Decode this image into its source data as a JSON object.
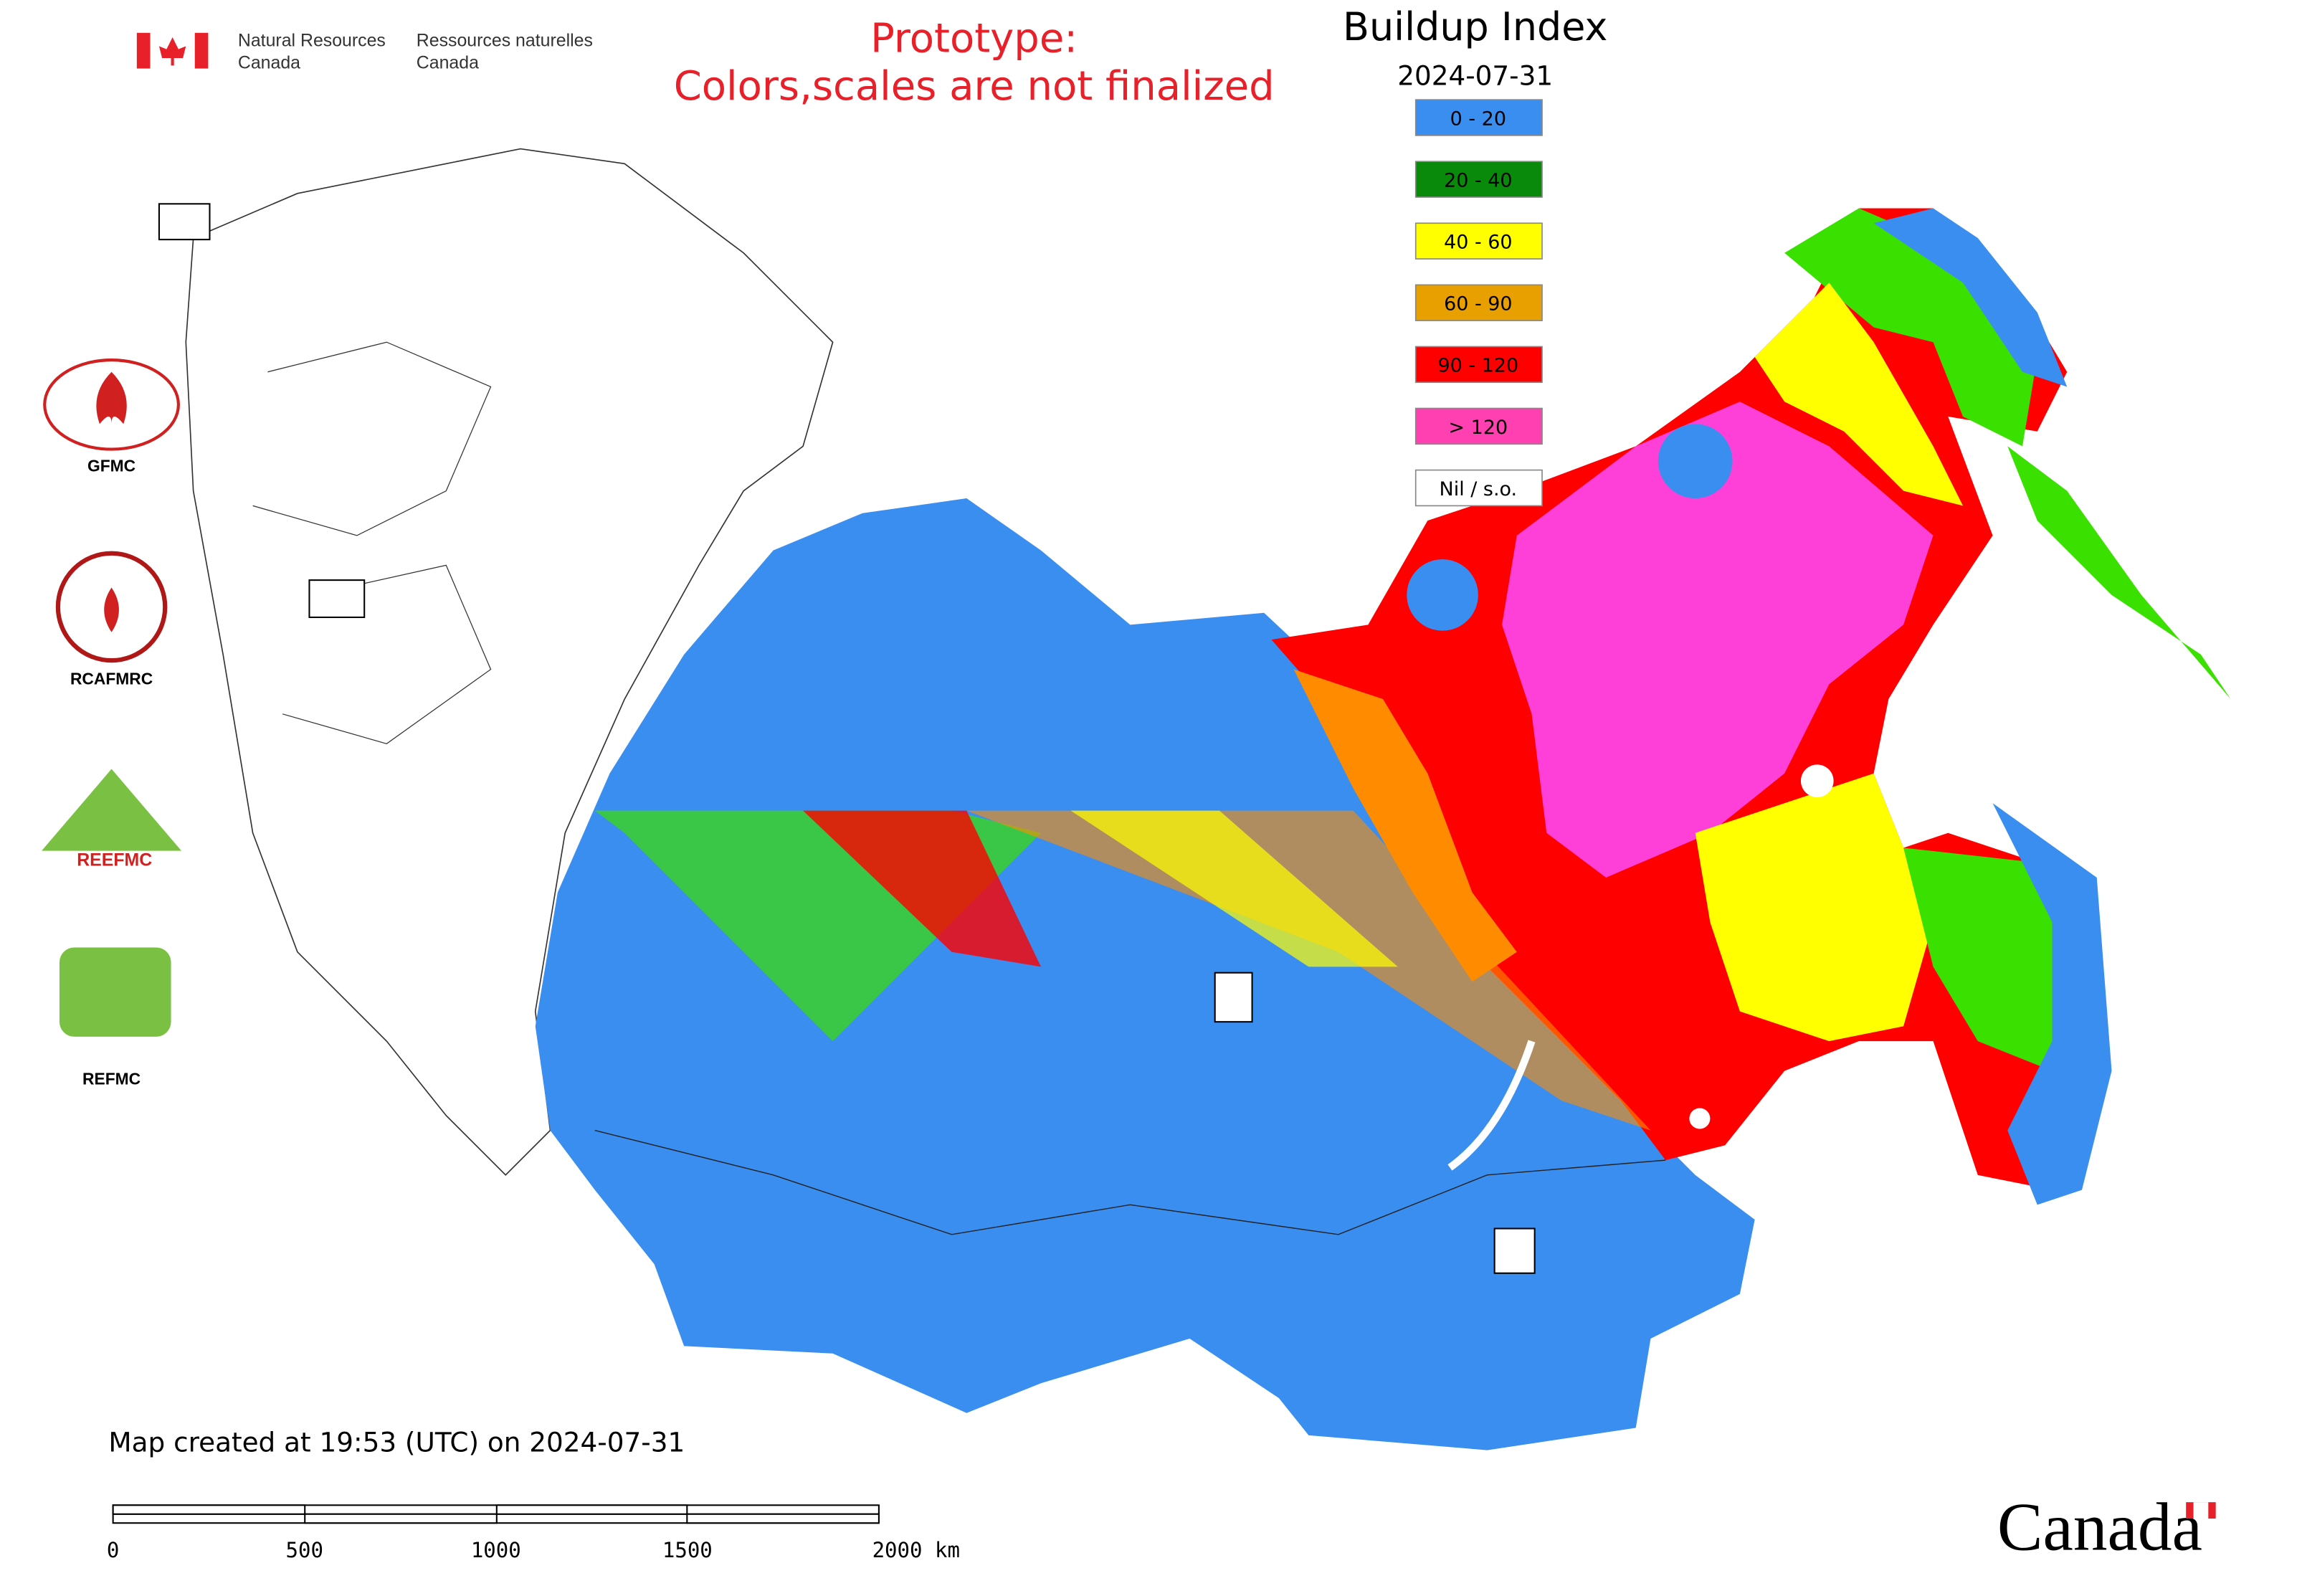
{
  "header": {
    "org_en_1": "Natural Resources",
    "org_en_2": "Canada",
    "org_fr_1": "Ressources naturelles",
    "org_fr_2": "Canada"
  },
  "notice": {
    "line1": "Prototype:",
    "line2": "Colors,scales are not finalized"
  },
  "map": {
    "title": "Buildup Index",
    "date": "2024-07-31",
    "legend": [
      {
        "label": "0 - 20",
        "color": "#3a8ef0"
      },
      {
        "label": "20 - 40",
        "color": "#0a8a0a"
      },
      {
        "label": "40 - 60",
        "color": "#ffff00"
      },
      {
        "label": "60 - 90",
        "color": "#e8a000"
      },
      {
        "label": "90 - 120",
        "color": "#ff0000"
      },
      {
        "label": "> 120",
        "color": "#ff40b0"
      },
      {
        "label": "Nil / s.o.",
        "color": "#ffffff"
      }
    ],
    "created": "Map created at 19:53 (UTC) on 2024-07-31",
    "scale_labels": [
      "0",
      "500",
      "1000",
      "1500",
      "2000 km"
    ],
    "centers": [
      "GFMC",
      "RCAFMRC",
      "REFMC"
    ],
    "reefmc_logo": "REEFMC",
    "wordmark": "Canada"
  }
}
